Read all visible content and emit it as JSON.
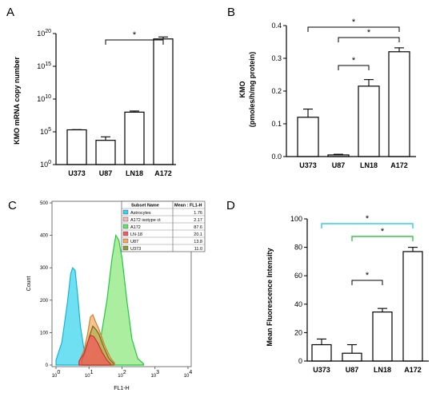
{
  "panels": {
    "a": {
      "letter": "A"
    },
    "b": {
      "letter": "B"
    },
    "c": {
      "letter": "C"
    },
    "d": {
      "letter": "D"
    }
  },
  "chart_data": [
    {
      "id": "a",
      "type": "bar",
      "scale": "log10",
      "categories": [
        "U373",
        "U87",
        "LN18",
        "A172"
      ],
      "values": [
        200000,
        5000,
        100000000.0,
        1.5e+19
      ],
      "errors": [
        15000,
        12000,
        50000000.0,
        1.5e+19
      ],
      "ylabel": "KMO mRNA copy number",
      "ylim": [
        1,
        1e+20
      ],
      "yticks": [
        {
          "value": 1,
          "base": "10",
          "exp": "0"
        },
        {
          "value": 100000,
          "base": "10",
          "exp": "5"
        },
        {
          "value": 10000000000.0,
          "base": "10",
          "exp": "10"
        },
        {
          "value": 1000000000000000.0,
          "base": "10",
          "exp": "15"
        },
        {
          "value": 1e+20,
          "base": "10",
          "exp": "20"
        }
      ],
      "significance": [
        {
          "from": "U87",
          "to": "A172",
          "label": "*"
        }
      ]
    },
    {
      "id": "b",
      "type": "bar",
      "categories": [
        "U373",
        "U87",
        "LN18",
        "A172"
      ],
      "values": [
        0.12,
        0.005,
        0.215,
        0.32
      ],
      "errors": [
        0.025,
        0.002,
        0.02,
        0.012
      ],
      "ylabel_lines": [
        "KMO",
        "(pmoles/h/mg protein)"
      ],
      "ylim": [
        0,
        0.4
      ],
      "yticks": [
        "0.0",
        "0.1",
        "0.2",
        "0.3",
        "0.4"
      ],
      "significance": [
        {
          "from": "U373",
          "to": "A172",
          "label": "*"
        },
        {
          "from": "U87",
          "to": "A172",
          "label": "*"
        },
        {
          "from": "U87",
          "to": "LN18",
          "label": "*"
        }
      ]
    },
    {
      "id": "c",
      "type": "area",
      "xscale": "log10",
      "xlabel": "FL1-H",
      "ylabel": "Count",
      "xlim": [
        1,
        10000
      ],
      "ylim": [
        0,
        500
      ],
      "yticks": [
        "0",
        "100",
        "200",
        "300",
        "400",
        "500"
      ],
      "xticks": [
        {
          "value": 1,
          "base": "10",
          "exp": "0"
        },
        {
          "value": 10,
          "base": "10",
          "exp": "1"
        },
        {
          "value": 100,
          "base": "10",
          "exp": "2"
        },
        {
          "value": 1000,
          "base": "10",
          "exp": "3"
        },
        {
          "value": 10000,
          "base": "10",
          "exp": "4"
        }
      ],
      "legend": {
        "header": [
          "Subset Name",
          "Mean : FL1-H"
        ],
        "rows": [
          {
            "name": "Astrocytes",
            "mean": "1.76",
            "color": "#35d2ee"
          },
          {
            "name": "A172 isotype ct",
            "mean": "2.17",
            "color": "#f2b8b8"
          },
          {
            "name": "A172",
            "mean": "87.6",
            "color": "#62e468"
          },
          {
            "name": "LN-18",
            "mean": "20.1",
            "color": "#ef5a6a"
          },
          {
            "name": "U87",
            "mean": "13.8",
            "color": "#f5a860"
          },
          {
            "name": "U373",
            "mean": "11.0",
            "color": "#8c9a3a"
          }
        ]
      },
      "series": [
        {
          "name": "Astrocytes",
          "fill": "#3ed6ee",
          "stroke": "#17b4d3",
          "points": [
            [
              1,
              15
            ],
            [
              1.5,
              70
            ],
            [
              2.2,
              190
            ],
            [
              2.8,
              282
            ],
            [
              3.2,
              300
            ],
            [
              3.8,
              292
            ],
            [
              4.5,
              220
            ],
            [
              5.5,
              120
            ],
            [
              7,
              50
            ],
            [
              9,
              18
            ],
            [
              12,
              4
            ]
          ]
        },
        {
          "name": "A172",
          "fill": "#8fe880",
          "stroke": "#22c83c",
          "points": [
            [
              8,
              8
            ],
            [
              14,
              28
            ],
            [
              22,
              75
            ],
            [
              35,
              200
            ],
            [
              50,
              330
            ],
            [
              65,
              400
            ],
            [
              80,
              385
            ],
            [
              100,
              330
            ],
            [
              140,
              200
            ],
            [
              200,
              80
            ],
            [
              300,
              20
            ],
            [
              450,
              4
            ]
          ]
        },
        {
          "name": "U87",
          "fill": "#f3b067",
          "stroke": "#c98338",
          "points": [
            [
              5,
              10
            ],
            [
              7,
              45
            ],
            [
              9,
              95
            ],
            [
              11,
              148
            ],
            [
              13,
              155
            ],
            [
              16,
              132
            ],
            [
              20,
              110
            ],
            [
              30,
              60
            ],
            [
              45,
              22
            ],
            [
              60,
              6
            ]
          ]
        },
        {
          "name": "U373",
          "fill": "#b4b052",
          "stroke": "#6f6a22",
          "points": [
            [
              6,
              12
            ],
            [
              8,
              45
            ],
            [
              10,
              85
            ],
            [
              13,
              120
            ],
            [
              16,
              110
            ],
            [
              20,
              95
            ],
            [
              28,
              55
            ],
            [
              40,
              20
            ],
            [
              55,
              5
            ]
          ]
        },
        {
          "name": "LN-18",
          "fill": "#ef5a5a",
          "stroke": "#c83535",
          "points": [
            [
              5,
              12
            ],
            [
              7,
              35
            ],
            [
              9,
              70
            ],
            [
              11,
              92
            ],
            [
              14,
              88
            ],
            [
              18,
              70
            ],
            [
              25,
              40
            ],
            [
              35,
              15
            ],
            [
              45,
              4
            ]
          ]
        }
      ]
    },
    {
      "id": "d",
      "type": "bar",
      "categories": [
        "U373",
        "U87",
        "LN18",
        "A172"
      ],
      "values": [
        11.5,
        5.5,
        34.5,
        77
      ],
      "errors": [
        4,
        6,
        2.5,
        3
      ],
      "ylabel": "Mean Fluorescence Intensity",
      "ylim": [
        0,
        100
      ],
      "yticks": [
        "0",
        "20",
        "40",
        "60",
        "80",
        "100"
      ],
      "significance": [
        {
          "from": "U373",
          "to": "A172",
          "label": "*"
        },
        {
          "from": "U87",
          "to": "A172",
          "label": "*"
        },
        {
          "from": "U87",
          "to": "LN18",
          "label": "*"
        }
      ]
    }
  ]
}
